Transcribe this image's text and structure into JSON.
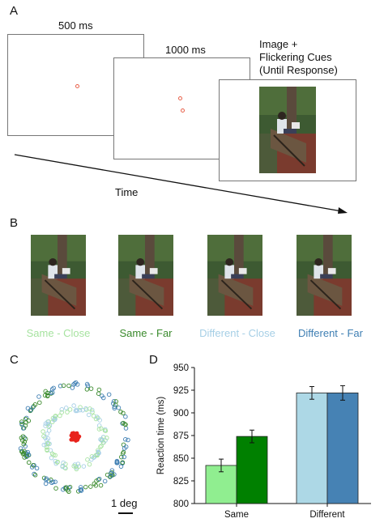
{
  "panels": {
    "a": "A",
    "b": "B",
    "c": "C",
    "d": "D"
  },
  "trial": {
    "frame1_label": "500 ms",
    "frame2_label": "1000 ms",
    "frame3_label_lines": [
      "Image +",
      "Flickering Cues",
      "(Until Response)"
    ],
    "time_label": "Time"
  },
  "conditions": [
    {
      "label": "Same - Close",
      "color": "#a7e3a0"
    },
    {
      "label": "Same - Far",
      "color": "#3a8a2c"
    },
    {
      "label": "Different - Close",
      "color": "#a6cfe6"
    },
    {
      "label": "Different - Far",
      "color": "#3f7fb3"
    }
  ],
  "scale_label": "1 deg",
  "colors": {
    "cue": "#e8604a",
    "center_dots": "#e8231c"
  },
  "chart_data": {
    "type": "bar",
    "categories": [
      "Same",
      "Different"
    ],
    "series": [
      {
        "values": [
          842,
          922
        ],
        "errors": [
          7,
          7
        ],
        "color": "#90ee90"
      },
      {
        "values": [
          874,
          922
        ],
        "errors": [
          7,
          8
        ],
        "color": "#008000"
      },
      {
        "values": [
          null,
          922
        ],
        "color": "#add8e6"
      },
      {
        "values": [
          null,
          922
        ],
        "color": "#4682b4"
      }
    ],
    "bars": [
      {
        "category": "Same",
        "condition": "Same - Close",
        "value": 842,
        "error": 7,
        "color": "#90ee90"
      },
      {
        "category": "Same",
        "condition": "Same - Far",
        "value": 874,
        "error": 7,
        "color": "#008000"
      },
      {
        "category": "Different",
        "condition": "Different - Close",
        "value": 922,
        "error": 7,
        "color": "#add8e6"
      },
      {
        "category": "Different",
        "condition": "Different - Far",
        "value": 922,
        "error": 8,
        "color": "#4682b4"
      }
    ],
    "ylabel": "Reaction time (ms)",
    "xlabel": "",
    "ylim": [
      800,
      950
    ],
    "yticks": [
      800,
      825,
      850,
      875,
      900,
      925,
      950
    ],
    "grid": false
  }
}
